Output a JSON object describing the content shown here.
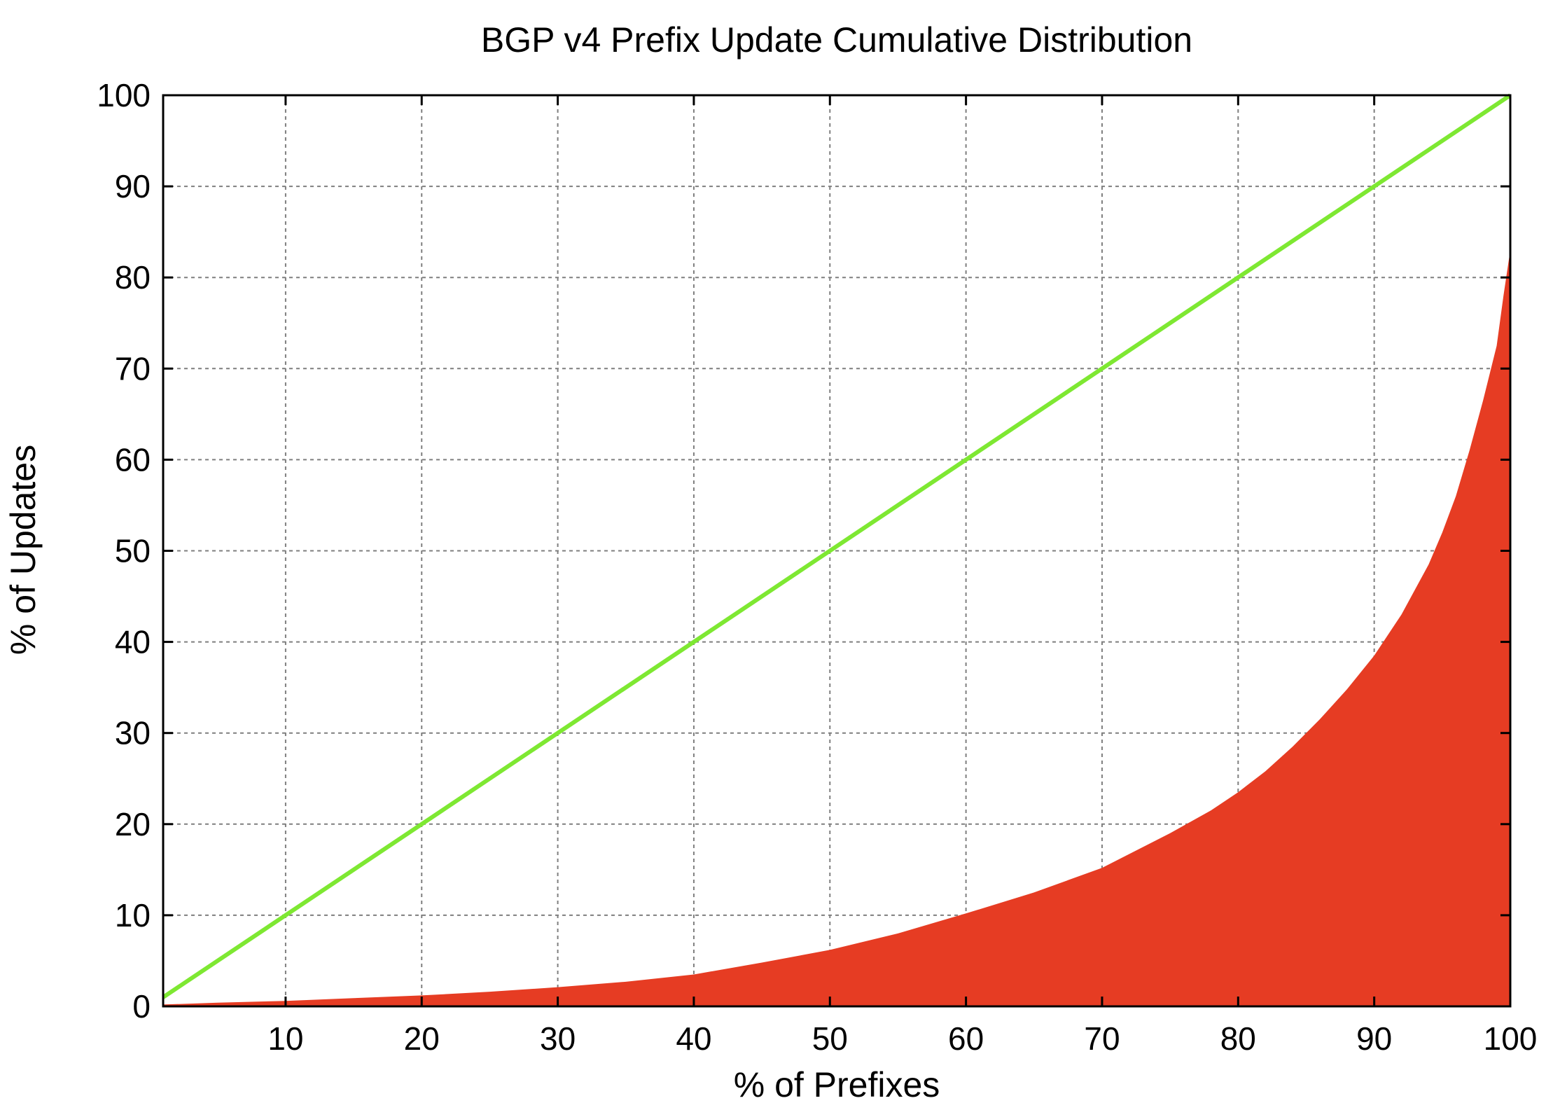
{
  "chart_data": {
    "type": "area",
    "title": "BGP v4 Prefix Update Cumulative Distribution",
    "xlabel": "% of Prefixes",
    "ylabel": "% of Updates",
    "xlim": [
      1,
      100
    ],
    "ylim": [
      0,
      100
    ],
    "x_ticks": [
      10,
      20,
      30,
      40,
      50,
      60,
      70,
      80,
      90,
      100
    ],
    "y_ticks": [
      0,
      10,
      20,
      30,
      40,
      50,
      60,
      70,
      80,
      90,
      100
    ],
    "grid": true,
    "legend": "none",
    "series": [
      {
        "type": "area",
        "color": "#e63c23",
        "x": [
          1,
          5,
          10,
          15,
          20,
          25,
          30,
          35,
          40,
          45,
          50,
          55,
          60,
          65,
          70,
          75,
          78,
          80,
          82,
          84,
          86,
          88,
          90,
          92,
          94,
          95,
          96,
          97,
          98,
          99,
          99.5,
          100
        ],
        "y": [
          0.2,
          0.4,
          0.6,
          0.9,
          1.2,
          1.6,
          2.1,
          2.7,
          3.5,
          4.8,
          6.2,
          8.0,
          10.2,
          12.5,
          15.2,
          19.0,
          21.5,
          23.5,
          25.8,
          28.5,
          31.5,
          34.8,
          38.5,
          43.0,
          48.5,
          52.0,
          56.0,
          61.0,
          66.5,
          72.5,
          78.0,
          83.0
        ]
      },
      {
        "type": "line",
        "color": "#7ee832",
        "x": [
          1,
          100
        ],
        "y": [
          1,
          100
        ]
      }
    ]
  }
}
